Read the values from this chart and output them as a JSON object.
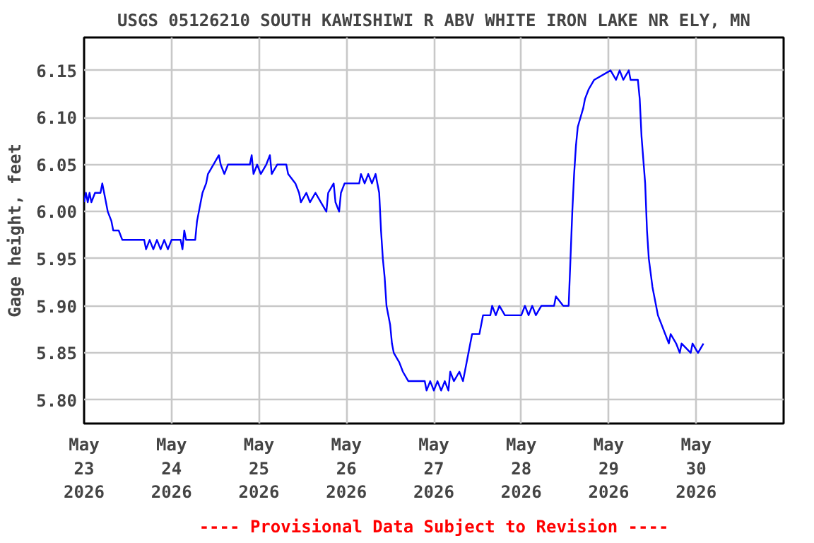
{
  "chart_data": {
    "type": "line",
    "title": "USGS 05126210 SOUTH KAWISHIWI R ABV WHITE IRON LAKE NR ELY, MN",
    "ylabel": "Gage height, feet",
    "annotations": [
      "---- Provisional Data Subject to Revision ----"
    ],
    "x": [
      "2026-05-23T00:00",
      "2026-05-23T00:30",
      "2026-05-23T01:00",
      "2026-05-23T01:30",
      "2026-05-23T02:00",
      "2026-05-23T03:00",
      "2026-05-23T04:30",
      "2026-05-23T05:00",
      "2026-05-23T05:30",
      "2026-05-23T06:00",
      "2026-05-23T06:30",
      "2026-05-23T07:30",
      "2026-05-23T08:00",
      "2026-05-23T09:30",
      "2026-05-23T10:30",
      "2026-05-23T16:30",
      "2026-05-23T17:00",
      "2026-05-23T18:00",
      "2026-05-23T19:00",
      "2026-05-23T20:00",
      "2026-05-23T21:00",
      "2026-05-23T22:00",
      "2026-05-23T23:00",
      "2026-05-24T00:00",
      "2026-05-24T02:30",
      "2026-05-24T03:00",
      "2026-05-24T03:30",
      "2026-05-24T04:00",
      "2026-05-24T06:30",
      "2026-05-24T07:00",
      "2026-05-24T07:30",
      "2026-05-24T08:00",
      "2026-05-24T08:30",
      "2026-05-24T09:30",
      "2026-05-24T10:00",
      "2026-05-24T11:30",
      "2026-05-24T13:00",
      "2026-05-24T13:30",
      "2026-05-24T14:30",
      "2026-05-24T15:30",
      "2026-05-24T21:30",
      "2026-05-24T22:00",
      "2026-05-24T22:30",
      "2026-05-24T23:30",
      "2026-05-25T00:30",
      "2026-05-25T02:00",
      "2026-05-25T03:00",
      "2026-05-25T03:30",
      "2026-05-25T05:00",
      "2026-05-25T07:30",
      "2026-05-25T08:00",
      "2026-05-25T10:00",
      "2026-05-25T11:00",
      "2026-05-25T11:30",
      "2026-05-25T13:00",
      "2026-05-25T14:00",
      "2026-05-25T15:30",
      "2026-05-25T17:00",
      "2026-05-25T18:30",
      "2026-05-25T19:00",
      "2026-05-25T20:30",
      "2026-05-25T21:00",
      "2026-05-25T22:00",
      "2026-05-25T22:30",
      "2026-05-25T23:30",
      "2026-05-26T03:30",
      "2026-05-26T04:00",
      "2026-05-26T05:00",
      "2026-05-26T06:00",
      "2026-05-26T07:00",
      "2026-05-26T08:00",
      "2026-05-26T08:30",
      "2026-05-26T09:00",
      "2026-05-26T09:30",
      "2026-05-26T10:00",
      "2026-05-26T10:30",
      "2026-05-26T11:00",
      "2026-05-26T12:00",
      "2026-05-26T12:30",
      "2026-05-26T13:00",
      "2026-05-26T14:30",
      "2026-05-26T15:30",
      "2026-05-26T17:00",
      "2026-05-26T21:30",
      "2026-05-26T22:00",
      "2026-05-26T23:00",
      "2026-05-27T00:00",
      "2026-05-27T01:00",
      "2026-05-27T02:00",
      "2026-05-27T03:00",
      "2026-05-27T04:00",
      "2026-05-27T04:30",
      "2026-05-27T05:30",
      "2026-05-27T07:00",
      "2026-05-27T08:00",
      "2026-05-27T09:00",
      "2026-05-27T10:00",
      "2026-05-27T10:30",
      "2026-05-27T12:30",
      "2026-05-27T13:00",
      "2026-05-27T13:30",
      "2026-05-27T15:30",
      "2026-05-27T16:00",
      "2026-05-27T17:00",
      "2026-05-27T18:00",
      "2026-05-27T19:30",
      "2026-05-28T00:00",
      "2026-05-28T01:00",
      "2026-05-28T02:00",
      "2026-05-28T03:00",
      "2026-05-28T04:00",
      "2026-05-28T05:30",
      "2026-05-28T09:00",
      "2026-05-28T09:30",
      "2026-05-28T11:30",
      "2026-05-28T13:00",
      "2026-05-28T13:30",
      "2026-05-28T14:00",
      "2026-05-28T14:30",
      "2026-05-28T15:00",
      "2026-05-28T15:30",
      "2026-05-28T17:00",
      "2026-05-28T17:30",
      "2026-05-28T18:30",
      "2026-05-28T20:00",
      "2026-05-29T00:30",
      "2026-05-29T02:00",
      "2026-05-29T03:00",
      "2026-05-29T04:00",
      "2026-05-29T05:30",
      "2026-05-29T06:00",
      "2026-05-29T08:00",
      "2026-05-29T08:30",
      "2026-05-29T09:00",
      "2026-05-29T10:00",
      "2026-05-29T10:30",
      "2026-05-29T11:00",
      "2026-05-29T12:00",
      "2026-05-29T13:00",
      "2026-05-29T13:30",
      "2026-05-29T14:30",
      "2026-05-29T15:30",
      "2026-05-29T16:30",
      "2026-05-29T17:00",
      "2026-05-29T18:30",
      "2026-05-29T19:30",
      "2026-05-29T20:00",
      "2026-05-29T22:30",
      "2026-05-29T23:00",
      "2026-05-30T00:30",
      "2026-05-30T02:00"
    ],
    "series": [
      {
        "color": "#0000ff",
        "values": [
          6.01,
          6.02,
          6.01,
          6.02,
          6.01,
          6.02,
          6.02,
          6.03,
          6.02,
          6.01,
          6.0,
          5.99,
          5.98,
          5.98,
          5.97,
          5.97,
          5.96,
          5.97,
          5.96,
          5.97,
          5.96,
          5.97,
          5.96,
          5.97,
          5.97,
          5.96,
          5.98,
          5.97,
          5.97,
          5.99,
          6.0,
          6.01,
          6.02,
          6.03,
          6.04,
          6.05,
          6.06,
          6.05,
          6.04,
          6.05,
          6.05,
          6.06,
          6.04,
          6.05,
          6.04,
          6.05,
          6.06,
          6.04,
          6.05,
          6.05,
          6.04,
          6.03,
          6.02,
          6.01,
          6.02,
          6.01,
          6.02,
          6.01,
          6.0,
          6.02,
          6.03,
          6.01,
          6.0,
          6.02,
          6.03,
          6.03,
          6.04,
          6.03,
          6.04,
          6.03,
          6.04,
          6.03,
          6.02,
          5.98,
          5.95,
          5.93,
          5.9,
          5.88,
          5.86,
          5.85,
          5.84,
          5.83,
          5.82,
          5.82,
          5.81,
          5.82,
          5.81,
          5.82,
          5.81,
          5.82,
          5.81,
          5.83,
          5.82,
          5.83,
          5.82,
          5.84,
          5.86,
          5.87,
          5.87,
          5.88,
          5.89,
          5.89,
          5.9,
          5.89,
          5.9,
          5.89,
          5.89,
          5.9,
          5.89,
          5.9,
          5.89,
          5.9,
          5.9,
          5.91,
          5.9,
          5.9,
          5.95,
          6.0,
          6.04,
          6.07,
          6.09,
          6.11,
          6.12,
          6.13,
          6.14,
          6.15,
          6.14,
          6.15,
          6.14,
          6.15,
          6.14,
          6.14,
          6.12,
          6.08,
          6.03,
          5.98,
          5.95,
          5.92,
          5.9,
          5.89,
          5.88,
          5.87,
          5.86,
          5.87,
          5.86,
          5.85,
          5.86,
          5.85,
          5.86,
          5.85,
          5.86
        ]
      }
    ],
    "xlim": [
      "2026-05-23",
      "2026-05-31"
    ],
    "xticks": [
      {
        "value": "2026-05-23",
        "label": "May\n23\n2026"
      },
      {
        "value": "2026-05-24",
        "label": "May\n24\n2026"
      },
      {
        "value": "2026-05-25",
        "label": "May\n25\n2026"
      },
      {
        "value": "2026-05-26",
        "label": "May\n26\n2026"
      },
      {
        "value": "2026-05-27",
        "label": "May\n27\n2026"
      },
      {
        "value": "2026-05-28",
        "label": "May\n28\n2026"
      },
      {
        "value": "2026-05-29",
        "label": "May\n29\n2026"
      },
      {
        "value": "2026-05-30",
        "label": "May\n30\n2026"
      }
    ],
    "ylim": [
      5.775,
      6.185
    ],
    "yticks": [
      {
        "value": 5.8,
        "label": "5.80"
      },
      {
        "value": 5.85,
        "label": "5.85"
      },
      {
        "value": 5.9,
        "label": "5.90"
      },
      {
        "value": 5.95,
        "label": "5.95"
      },
      {
        "value": 6.0,
        "label": "6.00"
      },
      {
        "value": 6.05,
        "label": "6.05"
      },
      {
        "value": 6.1,
        "label": "6.10"
      },
      {
        "value": 6.15,
        "label": "6.15"
      }
    ],
    "grid": true,
    "line_style": "solid"
  }
}
